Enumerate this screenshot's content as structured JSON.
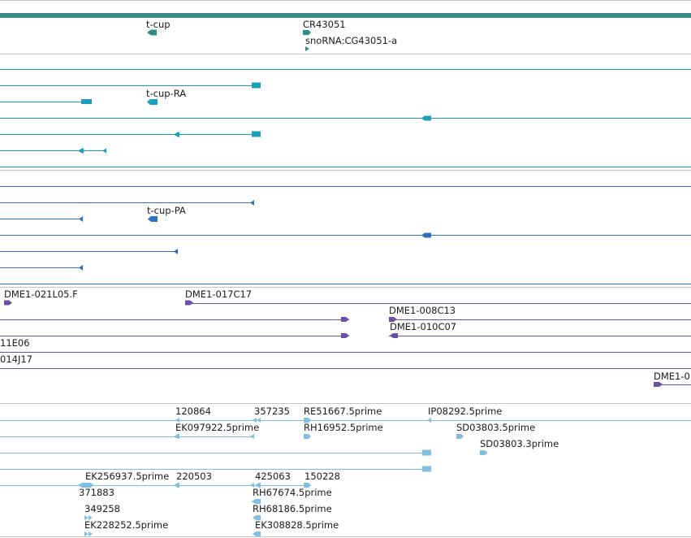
{
  "colors": {
    "gene": "#2e8b8b",
    "rna": "#1aa0bc",
    "protein": "#2f6fc4",
    "bac": "#6a4fa3",
    "est": "#7fbfe0",
    "separator": "#c4c4c4",
    "header_bar": "#3d8b88"
  },
  "gene_track": {
    "labels": [
      "t-cup",
      "CR43051",
      "snoRNA:CG43051-a"
    ]
  },
  "rna_track": {
    "labels": [
      "t-cup-RA"
    ]
  },
  "protein_track": {
    "labels": [
      "t-cup-PA"
    ]
  },
  "bac_track": {
    "labels": [
      "DME1-021L05.F",
      "DME1-017C17",
      "DME1-008C13",
      "DME1-010C07",
      "11E06",
      "014J17",
      "DME1-0"
    ]
  },
  "est_track": {
    "labels": [
      "120864",
      "357235",
      "RE51667.5prime",
      "IP08292.5prime",
      "EK097922.5prime",
      "RH16952.5prime",
      "SD03803.5prime",
      "SD03803.3prime",
      "EK256937.5prime",
      "220503",
      "425063",
      "150228",
      "371883",
      "RH67674.5prime",
      "349258",
      "RH68186.5prime",
      "EK228252.5prime",
      "EK308828.5prime"
    ]
  }
}
